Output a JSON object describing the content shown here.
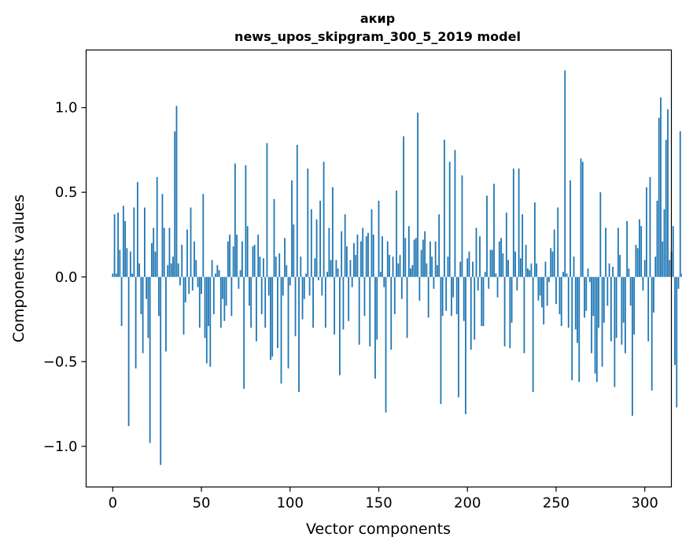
{
  "chart_data": {
    "type": "bar",
    "title": "акир",
    "subtitle": "news_upos_skipgram_300_5_2019 model",
    "xlabel": "Vector components",
    "ylabel": "Components values",
    "xlim": [
      -15,
      315
    ],
    "ylim": [
      -1.24,
      1.34
    ],
    "x_ticks": [
      0,
      50,
      100,
      150,
      200,
      250,
      300
    ],
    "x_tick_labels": [
      "0",
      "50",
      "100",
      "150",
      "200",
      "250",
      "300"
    ],
    "y_ticks": [
      -1.0,
      -0.5,
      0.0,
      0.5,
      1.0
    ],
    "y_tick_labels": [
      "−1.0",
      "−0.5",
      "0.0",
      "0.5",
      "1.0"
    ],
    "bar_color": "#1f77b4",
    "grid": false,
    "legend": "none",
    "values": [
      0.02,
      0.37,
      0.02,
      0.38,
      0.16,
      -0.29,
      0.42,
      0.33,
      0.17,
      -0.88,
      0.15,
      0.02,
      0.41,
      -0.54,
      0.56,
      0.08,
      -0.22,
      -0.45,
      0.41,
      -0.13,
      -0.36,
      -0.98,
      0.2,
      0.29,
      0.15,
      0.59,
      -0.23,
      -1.11,
      0.49,
      0.29,
      -0.44,
      0.07,
      0.29,
      0.08,
      0.12,
      0.86,
      1.01,
      0.08,
      -0.05,
      0.19,
      -0.34,
      -0.15,
      0.28,
      -0.1,
      0.41,
      -0.08,
      0.21,
      0.1,
      -0.06,
      -0.3,
      -0.1,
      0.49,
      -0.36,
      -0.51,
      -0.29,
      -0.53,
      0.1,
      -0.22,
      0.02,
      0.07,
      0.04,
      -0.3,
      -0.13,
      -0.26,
      -0.17,
      0.21,
      0.25,
      -0.23,
      0.18,
      0.67,
      0.25,
      -0.07,
      0.04,
      0.21,
      -0.66,
      0.66,
      0.3,
      -0.17,
      -0.3,
      0.18,
      0.19,
      -0.38,
      0.25,
      0.12,
      -0.22,
      0.11,
      -0.3,
      0.79,
      -0.11,
      -0.49,
      -0.47,
      0.46,
      0.12,
      -0.42,
      0.14,
      -0.63,
      -0.11,
      0.23,
      0.07,
      -0.54,
      -0.05,
      0.57,
      0.31,
      -0.35,
      0.78,
      -0.68,
      0.12,
      -0.25,
      -0.13,
      0.02,
      0.64,
      -0.11,
      0.4,
      -0.3,
      0.11,
      0.34,
      -0.02,
      0.45,
      -0.11,
      0.68,
      -0.3,
      0.03,
      0.29,
      0.1,
      0.53,
      -0.34,
      0.1,
      0.05,
      -0.58,
      0.27,
      -0.31,
      0.37,
      0.18,
      -0.26,
      0.1,
      -0.06,
      0.2,
      0.13,
      0.25,
      -0.4,
      0.21,
      0.29,
      -0.23,
      0.24,
      0.26,
      -0.41,
      0.4,
      0.25,
      -0.6,
      -0.37,
      0.45,
      0.03,
      0.24,
      -0.06,
      -0.8,
      0.21,
      0.13,
      -0.43,
      0.12,
      -0.22,
      0.51,
      0.08,
      0.13,
      -0.13,
      0.83,
      0.23,
      -0.36,
      0.3,
      0.05,
      0.07,
      0.22,
      0.23,
      0.97,
      -0.14,
      0.16,
      0.22,
      0.27,
      0.08,
      -0.24,
      0.21,
      0.12,
      -0.07,
      0.21,
      0.07,
      0.37,
      -0.75,
      -0.23,
      0.81,
      -0.2,
      0.12,
      0.68,
      -0.23,
      -0.12,
      0.75,
      -0.22,
      -0.71,
      0.09,
      0.6,
      -0.26,
      -0.81,
      0.11,
      0.15,
      -0.43,
      0.09,
      -0.37,
      0.29,
      -0.08,
      0.24,
      -0.29,
      -0.29,
      0.03,
      0.48,
      -0.07,
      0.16,
      0.16,
      0.55,
      0.02,
      -0.12,
      0.21,
      0.23,
      0.14,
      -0.41,
      0.38,
      0.1,
      -0.42,
      -0.27,
      0.64,
      0.15,
      -0.08,
      0.64,
      0.11,
      0.37,
      -0.45,
      0.19,
      0.05,
      0.04,
      0.08,
      -0.68,
      0.44,
      0.08,
      -0.14,
      -0.11,
      -0.18,
      -0.28,
      0.09,
      -0.17,
      -0.03,
      0.17,
      0.15,
      0.28,
      -0.16,
      0.41,
      -0.22,
      -0.29,
      0.03,
      1.22,
      0.02,
      -0.3,
      0.57,
      -0.61,
      0.12,
      -0.31,
      -0.39,
      -0.62,
      0.7,
      0.68,
      -0.24,
      -0.2,
      0.05,
      -0.03,
      -0.45,
      -0.23,
      -0.57,
      -0.62,
      -0.3,
      0.5,
      -0.53,
      -0.27,
      0.29,
      -0.17,
      0.08,
      -0.38,
      0.06,
      -0.65,
      -0.36,
      0.29,
      0.13,
      -0.4,
      -0.27,
      -0.45,
      0.33,
      0.05,
      -0.17,
      -0.82,
      -0.34,
      0.19,
      0.17,
      0.34,
      0.3,
      -0.08,
      0.1,
      0.53,
      -0.38,
      0.59,
      -0.67,
      -0.21,
      0.12,
      0.45,
      0.94,
      1.06,
      0.21,
      0.4,
      0.81,
      0.99,
      0.1,
      0.15,
      0.3,
      -0.52,
      -0.77,
      -0.07,
      0.86,
      0.02
    ]
  }
}
